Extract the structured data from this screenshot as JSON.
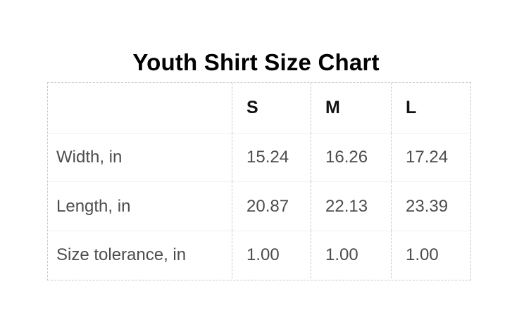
{
  "title": "Youth Shirt Size Chart",
  "table": {
    "columns": [
      "",
      "S",
      "M",
      "L"
    ],
    "rows": [
      {
        "label": "Width, in",
        "values": [
          "15.24",
          "16.26",
          "17.24"
        ]
      },
      {
        "label": "Length, in",
        "values": [
          "20.87",
          "22.13",
          "23.39"
        ]
      },
      {
        "label": "Size tolerance, in",
        "values": [
          "1.00",
          "1.00",
          "1.00"
        ]
      }
    ]
  },
  "colors": {
    "background": "#ffffff",
    "title_text": "#000000",
    "header_text": "#111111",
    "body_text": "#4d4d4d",
    "dashed_border": "#c9c9c9",
    "row_divider": "#f0f0f0"
  }
}
